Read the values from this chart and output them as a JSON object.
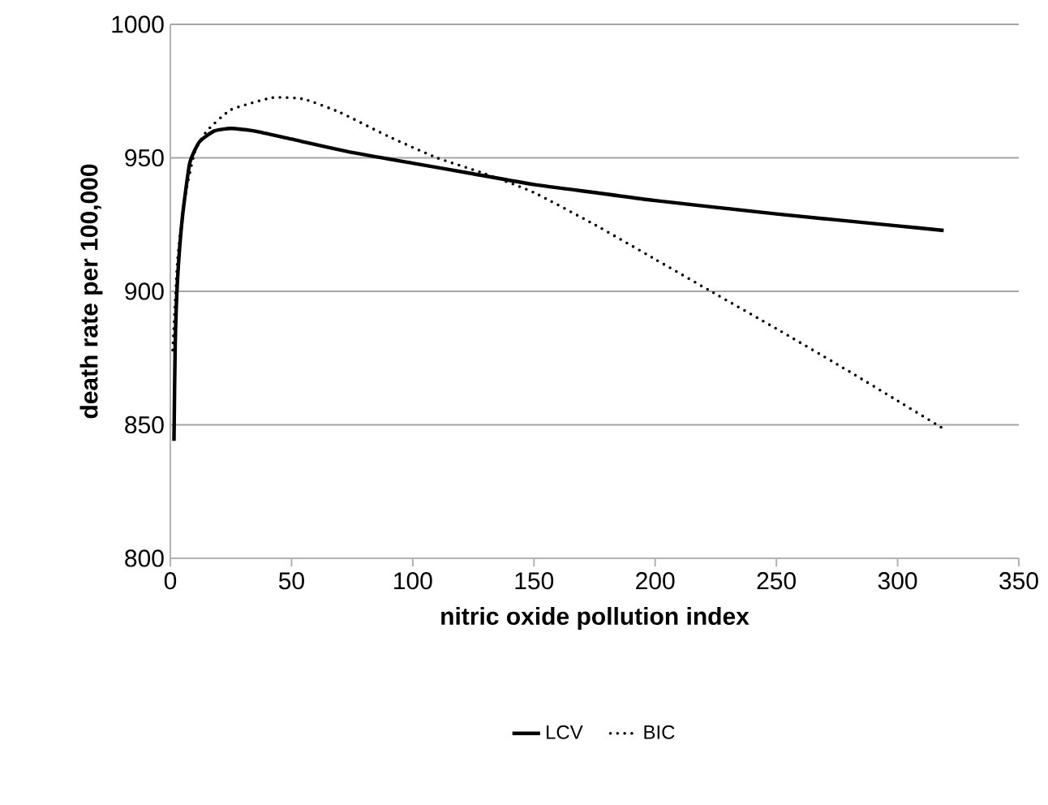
{
  "chart_data": {
    "type": "line",
    "xlabel": "nitric oxide pollution index",
    "ylabel": "death rate per 100,000",
    "xlim": [
      0,
      350
    ],
    "xticks": [
      0,
      50,
      100,
      150,
      200,
      250,
      300,
      350
    ],
    "ylim": [
      800,
      1000
    ],
    "yticks": [
      800,
      850,
      900,
      950,
      1000
    ],
    "grid": "y",
    "legend": "bottom",
    "marker": "none",
    "series": [
      {
        "name": "LCV",
        "color": "#000000",
        "line_style": "solid",
        "x": [
          1.5,
          2,
          3,
          5,
          8,
          12,
          18,
          25,
          35,
          50,
          75,
          100,
          125,
          150,
          175,
          200,
          250,
          300,
          319
        ],
        "values": [
          844,
          880,
          905,
          928,
          948,
          956,
          960,
          961,
          960,
          957,
          952,
          948,
          944,
          940,
          937,
          934,
          929,
          924.5,
          922.8
        ]
      },
      {
        "name": "BIC",
        "color": "#000000",
        "line_style": "dotted",
        "x": [
          1,
          3,
          6,
          10,
          15,
          25,
          42,
          55,
          70,
          90,
          110,
          130,
          150,
          175,
          200,
          223,
          250,
          280,
          300,
          319
        ],
        "values": [
          878,
          912,
          935,
          952,
          960,
          968,
          972.5,
          972,
          967,
          958,
          950,
          944,
          937,
          925,
          912,
          900,
          886,
          870,
          859,
          848.5
        ]
      }
    ]
  }
}
